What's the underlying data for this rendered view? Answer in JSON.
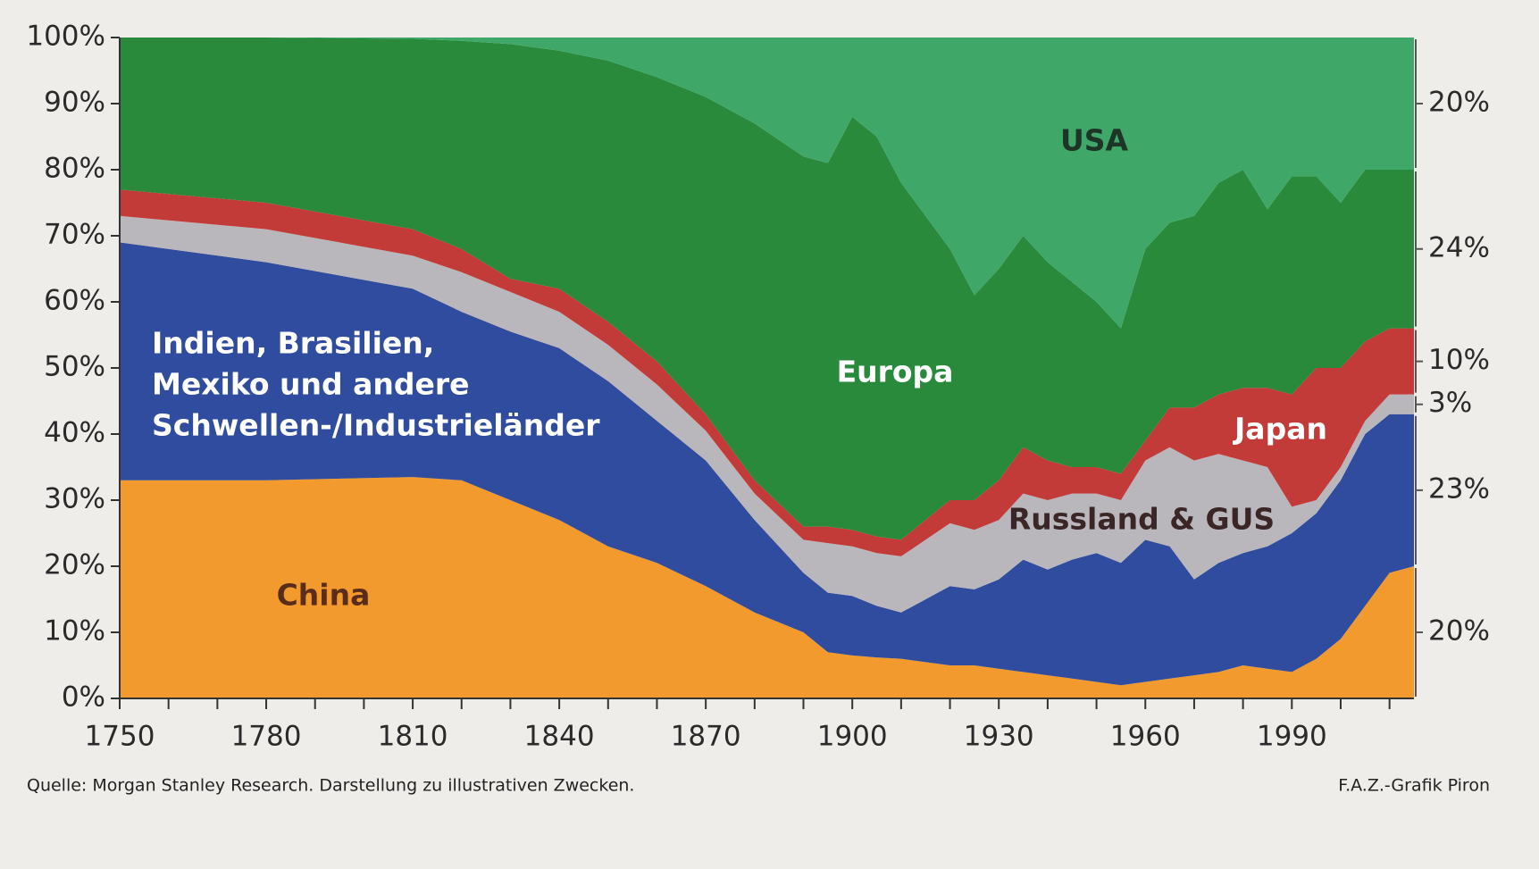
{
  "chart_data": {
    "type": "stacked_area",
    "x": [
      1750,
      1780,
      1810,
      1820,
      1830,
      1840,
      1850,
      1860,
      1870,
      1880,
      1890,
      1895,
      1900,
      1905,
      1910,
      1920,
      1925,
      1930,
      1935,
      1940,
      1945,
      1950,
      1955,
      1960,
      1965,
      1970,
      1975,
      1980,
      1985,
      1990,
      1995,
      2000,
      2005,
      2010,
      2015
    ],
    "series": [
      {
        "label_lines": [
          "China"
        ],
        "color": "#f39a2e",
        "text_color": "#5a2d1a",
        "end_label": "20%",
        "values": [
          33,
          33,
          33.5,
          33,
          30,
          27,
          23,
          20.5,
          17,
          13,
          10,
          7,
          6.5,
          6.2,
          6,
          5,
          5,
          4.5,
          4,
          3.5,
          3,
          2.5,
          2,
          2.5,
          3,
          3.5,
          4,
          5,
          4.5,
          4,
          6,
          9,
          14,
          19,
          20
        ]
      },
      {
        "label_lines": [
          "Indien, Brasilien,",
          "Mexiko und andere",
          "Schwellen-/Industrieländer"
        ],
        "color": "#2f4c9e",
        "text_color": "#ffffff",
        "end_label": "23%",
        "values": [
          36,
          33,
          28.5,
          25.5,
          25.5,
          26,
          25,
          21.5,
          19,
          14,
          9,
          9,
          9,
          7.8,
          7,
          12,
          11.5,
          13.5,
          17,
          16,
          18,
          19.5,
          18.5,
          21.5,
          20,
          14.5,
          16.5,
          17,
          18.5,
          21,
          22,
          24,
          26,
          24,
          23
        ]
      },
      {
        "label_lines": [
          "Russland & GUS"
        ],
        "color": "#b9b7bb",
        "text_color": "#3a2626",
        "end_label": "3%",
        "values": [
          4,
          5,
          5,
          6,
          6,
          5.5,
          5.5,
          5.5,
          4.5,
          4,
          5,
          7.5,
          7.5,
          8,
          8.5,
          9.5,
          9,
          9,
          10,
          10.5,
          10,
          9,
          9.5,
          12,
          15,
          18,
          16.5,
          14,
          12,
          4,
          2,
          2,
          2,
          3,
          3
        ]
      },
      {
        "label_lines": [
          "Japan"
        ],
        "color": "#c23b38",
        "text_color": "#ffffff",
        "end_label": "10%",
        "values": [
          4,
          4,
          4,
          3.5,
          2,
          3.5,
          3.5,
          3.5,
          2.5,
          2,
          2,
          2.5,
          2.5,
          2.5,
          2.5,
          3.5,
          4.5,
          6,
          7,
          6,
          4,
          4,
          4,
          3,
          6,
          8,
          9,
          11,
          12,
          17,
          20,
          15,
          12,
          10,
          10
        ]
      },
      {
        "label_lines": [
          "Europa"
        ],
        "color": "#2a8a3c",
        "text_color": "#ffffff",
        "end_label": "24%",
        "values": [
          23,
          25,
          28.8,
          31.5,
          35.5,
          36,
          39.5,
          43,
          48,
          54,
          56,
          55,
          62.5,
          60.5,
          54,
          38,
          31,
          32,
          32,
          30,
          28,
          25,
          22,
          29,
          28,
          29,
          32,
          33,
          27,
          33,
          29,
          25,
          26,
          24,
          24
        ]
      },
      {
        "label_lines": [
          "USA"
        ],
        "color": "#3fa868",
        "text_color": "#1c3526",
        "end_label": "20%",
        "values": [
          0,
          0,
          0.2,
          0.5,
          1,
          2,
          3.5,
          6,
          9,
          13,
          18,
          19,
          12,
          15,
          22,
          32,
          39,
          35,
          30,
          34,
          37,
          40,
          44,
          32,
          28,
          27,
          22,
          20,
          26,
          21,
          21,
          25,
          20,
          20,
          20
        ]
      }
    ],
    "xlim": [
      1750,
      2015
    ],
    "xticks": [
      1750,
      1780,
      1810,
      1840,
      1870,
      1900,
      1930,
      1960,
      1990
    ],
    "xminor_ticks": [
      1760,
      1770,
      1790,
      1800,
      1820,
      1830,
      1850,
      1860,
      1880,
      1890,
      1910,
      1920,
      1940,
      1950,
      1970,
      1980,
      2000,
      2010
    ],
    "ylim": [
      0,
      100
    ],
    "yticks": [
      {
        "value": 0,
        "label": "0%"
      },
      {
        "value": 10,
        "label": "10%"
      },
      {
        "value": 20,
        "label": "20%"
      },
      {
        "value": 30,
        "label": "30%"
      },
      {
        "value": 40,
        "label": "40%"
      },
      {
        "value": 50,
        "label": "50%"
      },
      {
        "value": 60,
        "label": "60%"
      },
      {
        "value": 70,
        "label": "70%"
      },
      {
        "value": 80,
        "label": "80%"
      },
      {
        "value": 90,
        "label": "90%"
      },
      {
        "value": 100,
        "label": "100%"
      }
    ],
    "source": "Quelle: Morgan Stanley Research. Darstellung zu illustrativen Zwecken.",
    "credit": "F.A.Z.-Grafik Piron"
  }
}
